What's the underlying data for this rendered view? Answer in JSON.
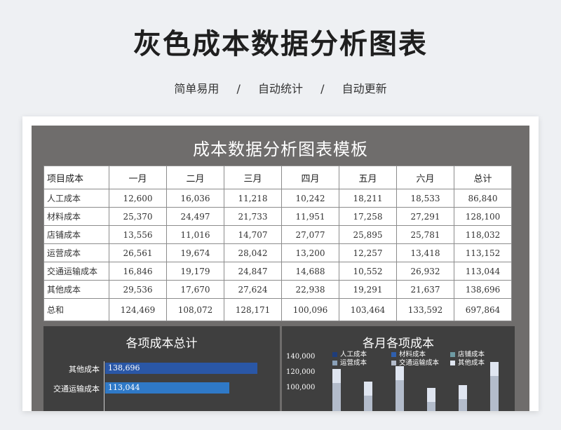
{
  "page": {
    "headline": "灰色成本数据分析图表",
    "tags": [
      "简单易用",
      "/",
      "自动统计",
      "/",
      "自动更新"
    ]
  },
  "sheet": {
    "title": "成本数据分析图表模板",
    "headers": [
      "项目成本",
      "一月",
      "二月",
      "三月",
      "四月",
      "五月",
      "六月",
      "总计"
    ],
    "rows": [
      [
        "人工成本",
        "12,600",
        "16,036",
        "11,218",
        "10,242",
        "18,211",
        "18,533",
        "86,840"
      ],
      [
        "材料成本",
        "25,370",
        "24,497",
        "21,733",
        "11,951",
        "17,258",
        "27,291",
        "128,100"
      ],
      [
        "店铺成本",
        "13,556",
        "11,016",
        "14,707",
        "27,077",
        "25,895",
        "25,781",
        "118,032"
      ],
      [
        "运营成本",
        "26,561",
        "19,674",
        "28,042",
        "13,200",
        "12,257",
        "13,418",
        "113,152"
      ],
      [
        "交通运输成本",
        "16,846",
        "19,179",
        "24,847",
        "14,688",
        "10,552",
        "26,932",
        "113,044"
      ],
      [
        "其他成本",
        "29,536",
        "17,670",
        "27,624",
        "22,938",
        "19,291",
        "21,637",
        "138,696"
      ],
      [
        "总和",
        "124,469",
        "108,072",
        "128,171",
        "100,096",
        "103,464",
        "133,592",
        "697,864"
      ]
    ]
  },
  "chart_data": [
    {
      "type": "bar",
      "orientation": "horizontal",
      "title": "各项成本总计",
      "categories": [
        "其他成本",
        "交通运输成本"
      ],
      "values": [
        138696,
        113044
      ],
      "value_labels": [
        "138,696",
        "113,044"
      ],
      "colors": [
        "#2a57a6",
        "#2f79c7"
      ]
    },
    {
      "type": "bar",
      "stacked": true,
      "title": "各月各项成本",
      "legend": [
        "人工成本",
        "材料成本",
        "店铺成本",
        "运营成本",
        "交通运输成本",
        "其他成本"
      ],
      "legend_colors": [
        "#1f3d7a",
        "#2f5fae",
        "#6e9aa3",
        "#8aa0b8",
        "#b3bccb",
        "#dfe5f0"
      ],
      "y_ticks": [
        "140,000",
        "120,000",
        "100,000"
      ],
      "visible_totals": [
        124469,
        108072,
        128171,
        100096,
        103464,
        133592
      ]
    }
  ]
}
